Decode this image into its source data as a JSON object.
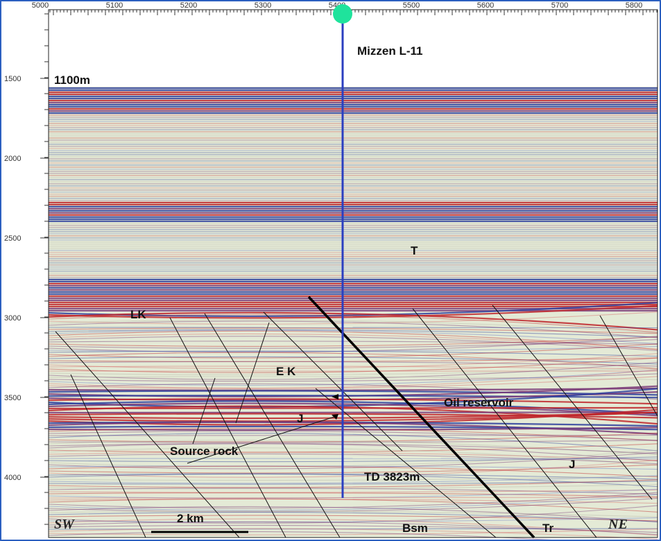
{
  "x_axis": {
    "ticks": [
      "5000",
      "5100",
      "5200",
      "5300",
      "5400",
      "5500",
      "5600",
      "5700",
      "5800"
    ]
  },
  "y_axis": {
    "ticks": [
      "1500",
      "2000",
      "2500",
      "3000",
      "3500",
      "4000"
    ]
  },
  "well": {
    "name": "Mizzen L-11",
    "depth_label": "TD 3823m"
  },
  "water_depth": "1100m",
  "labels": {
    "t": "T",
    "lk": "LK",
    "ek": "E K",
    "j_left": "J",
    "oil": "Oil reservoir",
    "source": "Source rock",
    "j_right": "J",
    "bsm": "Bsm",
    "tr": "Tr"
  },
  "directions": {
    "sw": "SW",
    "ne": "NE"
  },
  "scale_bar": "2 km"
}
